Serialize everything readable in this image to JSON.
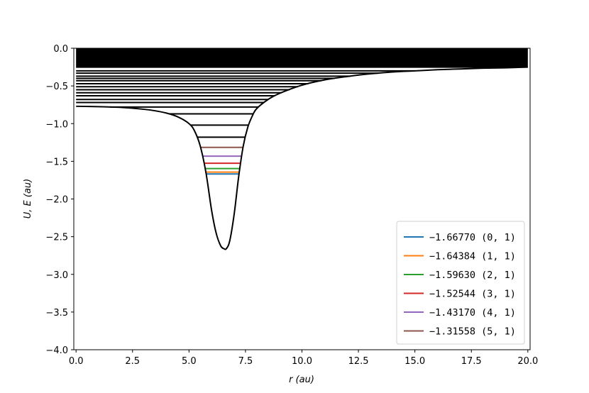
{
  "chart_data": {
    "type": "line",
    "title": "",
    "xlabel": "r (au)",
    "ylabel": "U, E (au)",
    "xlim": [
      -0.1,
      20.1
    ],
    "ylim": [
      -4.0,
      0.0
    ],
    "xticks": [
      0.0,
      2.5,
      5.0,
      7.5,
      10.0,
      12.5,
      15.0,
      17.5,
      20.0
    ],
    "xtick_labels": [
      "0.0",
      "2.5",
      "5.0",
      "7.5",
      "10.0",
      "12.5",
      "15.0",
      "17.5",
      "20.0"
    ],
    "yticks": [
      0.0,
      -0.5,
      -1.0,
      -1.5,
      -2.0,
      -2.5,
      -3.0,
      -3.5,
      -4.0
    ],
    "ytick_labels": [
      "0.0",
      "−0.5",
      "−1.0",
      "−1.5",
      "−2.0",
      "−2.5",
      "−3.0",
      "−3.5",
      "−4.0"
    ],
    "grid": false,
    "legend_location": "lower-right",
    "potential_curve": {
      "color": "#000000",
      "r": [
        0.0,
        1.0,
        2.0,
        3.0,
        3.5,
        4.0,
        4.5,
        5.0,
        5.25,
        5.5,
        5.75,
        6.0,
        6.2,
        6.4,
        6.55,
        6.65,
        6.8,
        7.0,
        7.2,
        7.4,
        7.6,
        7.8,
        8.0,
        8.5,
        9.0,
        10.0,
        11.0,
        12.0,
        13.0,
        14.0,
        15.0,
        16.0,
        17.0,
        18.0,
        19.0,
        20.0
      ],
      "U": [
        -0.77,
        -0.775,
        -0.785,
        -0.81,
        -0.83,
        -0.86,
        -0.91,
        -1.0,
        -1.1,
        -1.3,
        -1.65,
        -2.15,
        -2.45,
        -2.62,
        -2.66,
        -2.66,
        -2.56,
        -2.2,
        -1.7,
        -1.3,
        -1.05,
        -0.9,
        -0.8,
        -0.68,
        -0.6,
        -0.49,
        -0.42,
        -0.375,
        -0.34,
        -0.315,
        -0.3,
        -0.285,
        -0.275,
        -0.265,
        -0.26,
        -0.25
      ]
    },
    "bound_levels": [
      {
        "label": "−1.66770 (0, 1)",
        "energy": -1.6677,
        "color": "#1f77b4"
      },
      {
        "label": "−1.64384 (1, 1)",
        "energy": -1.64384,
        "color": "#ff7f0e"
      },
      {
        "label": "−1.59630 (2, 1)",
        "energy": -1.5963,
        "color": "#2ca02c"
      },
      {
        "label": "−1.52544 (3, 1)",
        "energy": -1.52544,
        "color": "#d62728"
      },
      {
        "label": "−1.43170 (4, 1)",
        "energy": -1.4317,
        "color": "#9467bd"
      },
      {
        "label": "−1.31558 (5, 1)",
        "energy": -1.31558,
        "color": "#8c564b"
      }
    ],
    "upper_levels": {
      "color": "#000000",
      "energies": [
        -1.18,
        -1.02,
        -0.87,
        -0.78,
        -0.72,
        -0.68,
        -0.63,
        -0.59,
        -0.55,
        -0.51,
        -0.47,
        -0.43,
        -0.4,
        -0.37,
        -0.33,
        -0.3
      ]
    },
    "continuum_band": {
      "color": "#000000",
      "E_min": -0.26,
      "E_max": 0.0
    }
  }
}
